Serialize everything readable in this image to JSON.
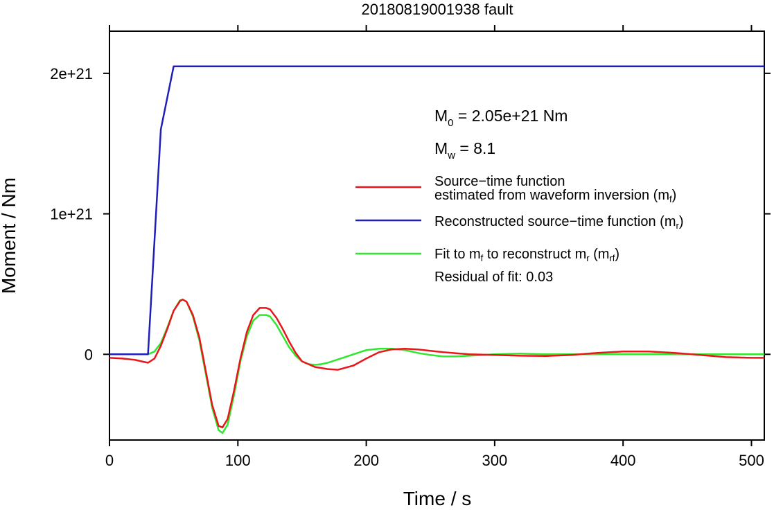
{
  "chart_data": {
    "type": "line",
    "title": "20180819001938 fault",
    "xlabel": "Time / s",
    "ylabel": "Moment / Nm",
    "xlim": [
      0,
      510
    ],
    "ylim": [
      -6.1e+20,
      2.3e+21
    ],
    "x_ticks": [
      0,
      100,
      200,
      300,
      400,
      500
    ],
    "x_tick_labels": [
      "0",
      "100",
      "200",
      "300",
      "400",
      "500"
    ],
    "y_ticks": [
      0,
      1e+21,
      2e+21
    ],
    "y_tick_labels": [
      "0",
      "1e+21",
      "2e+21"
    ],
    "grid": false,
    "legend_position": "right",
    "annotations": {
      "m0_main": "M",
      "m0_sub": "0",
      "m0_rest": " = 2.05e+21 Nm",
      "mw_main": "M",
      "mw_sub": "w",
      "mw_rest": " = 8.1",
      "residual": "Residual of fit: 0.03"
    },
    "legend": {
      "estimated_line1": "Source−time function",
      "estimated_line2": "estimated from waveform inversion (m",
      "estimated_line2_sub": "f",
      "estimated_line2_end": ")",
      "reconstructed": "Reconstructed source−time function (m",
      "reconstructed_sub": "r",
      "reconstructed_end": ")",
      "fit_a": "Fit to m",
      "fit_sub1": "f",
      "fit_b": " to reconstruct m",
      "fit_sub2": "r",
      "fit_c": " (m",
      "fit_sub3": "rf",
      "fit_d": ")"
    },
    "series": [
      {
        "key": "estimated",
        "color": "#e8161a",
        "x": [
          0,
          10,
          20,
          25,
          30,
          35,
          40,
          45,
          50,
          55,
          57,
          60,
          65,
          70,
          75,
          80,
          85,
          88,
          92,
          97,
          102,
          107,
          112,
          117,
          122,
          125,
          130,
          135,
          140,
          145,
          150,
          160,
          170,
          178,
          190,
          200,
          210,
          220,
          230,
          240,
          260,
          280,
          300,
          320,
          340,
          360,
          380,
          400,
          420,
          440,
          460,
          480,
          500,
          510
        ],
        "y": [
          -2.5e+19,
          -3e+19,
          -4e+19,
          -5e+19,
          -6e+19,
          -3e+19,
          6e+19,
          1.8e+20,
          3.1e+20,
          3.8e+20,
          3.9e+20,
          3.75e+20,
          2.8e+20,
          1.2e+20,
          -1.2e+20,
          -3.6e+20,
          -5.1e+20,
          -5.2e+20,
          -4.6e+20,
          -2.6e+20,
          -3e+19,
          1.6e+20,
          2.8e+20,
          3.3e+20,
          3.3e+20,
          3.2e+20,
          2.6e+20,
          1.8e+20,
          9e+19,
          1e+19,
          -5e+19,
          -9e+19,
          -1.05e+20,
          -1.1e+20,
          -8e+19,
          -3e+19,
          1.5e+19,
          3.5e+19,
          4e+19,
          3.5e+19,
          1.5e+19,
          0,
          -5e+18,
          -1e+19,
          -1.2e+19,
          -5e+18,
          1e+19,
          2e+19,
          2e+19,
          1e+19,
          -5e+18,
          -2e+19,
          -2.5e+19,
          -2.5e+19
        ]
      },
      {
        "key": "reconstructed",
        "color": "#1f1fb8",
        "x": [
          0,
          30,
          40,
          50,
          510
        ],
        "y": [
          0,
          0,
          1.6e+21,
          2.05e+21,
          2.05e+21
        ]
      },
      {
        "key": "fit",
        "color": "#2ee82e",
        "x": [
          0,
          30,
          35,
          40,
          45,
          50,
          55,
          57,
          60,
          65,
          70,
          75,
          80,
          85,
          88,
          92,
          97,
          102,
          107,
          112,
          117,
          122,
          125,
          130,
          135,
          140,
          145,
          150,
          155,
          160,
          165,
          170,
          180,
          190,
          200,
          210,
          220,
          230,
          240,
          250,
          260,
          270,
          280,
          300,
          320,
          340,
          360,
          380,
          400,
          450,
          510
        ],
        "y": [
          0,
          0,
          2e+19,
          8e+19,
          1.9e+20,
          3.1e+20,
          3.85e+20,
          3.9e+20,
          3.75e+20,
          2.7e+20,
          1e+20,
          -1.4e+20,
          -3.8e+20,
          -5.4e+20,
          -5.6e+20,
          -5e+20,
          -2.9e+20,
          -5e+19,
          1.3e+20,
          2.4e+20,
          2.8e+20,
          2.8e+20,
          2.7e+20,
          2.1e+20,
          1.3e+20,
          5e+19,
          -1e+19,
          -5e+19,
          -7e+19,
          -7.5e+19,
          -7e+19,
          -6e+19,
          -3e+19,
          0,
          3e+19,
          4e+19,
          4e+19,
          3e+19,
          1e+19,
          -5e+18,
          -1.5e+19,
          -1.5e+19,
          -1e+19,
          0,
          5e+18,
          0,
          0,
          0,
          0,
          0,
          0
        ]
      }
    ]
  }
}
